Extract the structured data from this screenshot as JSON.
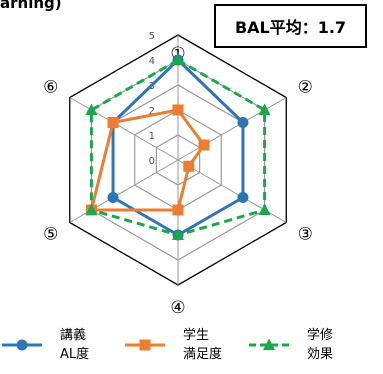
{
  "title_fragment": "arning)",
  "badge": {
    "label": "BAL平均：1.7"
  },
  "chart_data": {
    "type": "radar",
    "axes": [
      "①",
      "②",
      "③",
      "④",
      "⑤",
      "⑥"
    ],
    "r_ticks": [
      "0",
      "1",
      "2",
      "3",
      "4",
      "5"
    ],
    "rlim": [
      0,
      5
    ],
    "grid": true,
    "legend_position": "bottom",
    "series": [
      {
        "name": "講義\nAL度",
        "legend_lines": [
          "講義",
          "AL度"
        ],
        "values": [
          4,
          3,
          3,
          3,
          3,
          3
        ],
        "color": "#2e75b6",
        "marker": "circle",
        "dash": "solid"
      },
      {
        "name": "学生\n満足度",
        "legend_lines": [
          "学生",
          "満足度"
        ],
        "values": [
          2,
          1.2,
          0.5,
          2,
          4,
          3
        ],
        "color": "#ed7d31",
        "marker": "square",
        "dash": "solid"
      },
      {
        "name": "学修\n効果",
        "legend_lines": [
          "学修",
          "効果"
        ],
        "values": [
          4,
          4,
          4,
          3,
          4,
          4
        ],
        "color": "#1aa84c",
        "marker": "triangle",
        "dash": "dashed"
      }
    ]
  }
}
